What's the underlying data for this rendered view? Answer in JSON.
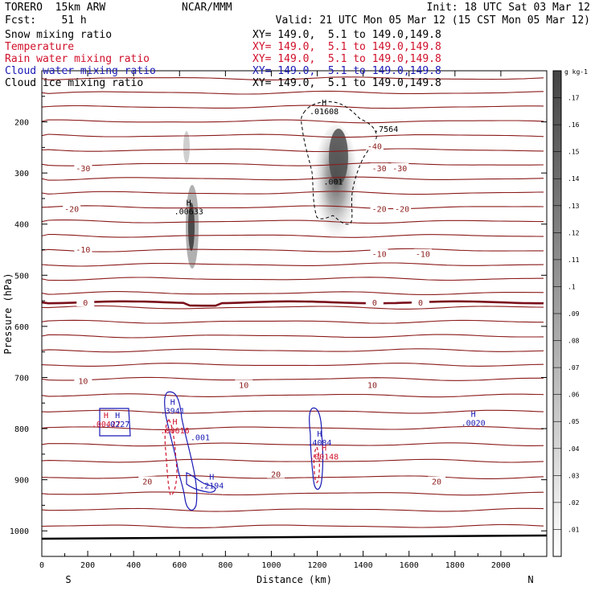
{
  "header": {
    "model": "TORERO  15km ARW",
    "center": "NCAR/MMM",
    "init": "Init: 18 UTC Sat 03 Mar 12",
    "fcst": "Fcst:    51 h",
    "valid": "Valid: 21 UTC Mon 05 Mar 12 (15 CST Mon 05 Mar 12)"
  },
  "legend": [
    {
      "name": "Snow mixing ratio",
      "color": "#000000",
      "xy": "XY= 149.0,  5.1 to 149.0,149.8"
    },
    {
      "name": "Temperature",
      "color": "#d0102a",
      "xy": "XY= 149.0,  5.1 to 149.0,149.8"
    },
    {
      "name": "Rain water mixing ratio",
      "color": "#d0102a",
      "xy": "XY= 149.0,  5.1 to 149.0,149.8"
    },
    {
      "name": "Cloud water mixing ratio",
      "color": "#1a1ab4",
      "xy": "XY= 149.0,  5.1 to 149.0,149.8"
    },
    {
      "name": "Cloud ice mixing ratio",
      "color": "#000000",
      "xy": "XY= 149.0,  5.1 to 149.0,149.8"
    }
  ],
  "chart_data": {
    "type": "heatmap",
    "xlabel": "Distance (km)",
    "ylabel": "Pressure (hPa)",
    "xlim": [
      0,
      2200
    ],
    "ylim": [
      1050,
      100
    ],
    "x_ticks": [
      0,
      200,
      400,
      600,
      800,
      1000,
      1200,
      1400,
      1600,
      1800,
      2000
    ],
    "y_ticks": [
      200,
      300,
      400,
      500,
      600,
      700,
      800,
      900,
      1000
    ],
    "end_labels": {
      "left": "S",
      "right": "N"
    },
    "colorbar": {
      "unit": "g kg-1",
      "ticks": [
        ".01",
        ".02",
        ".03",
        ".04",
        ".05",
        ".06",
        ".07",
        ".08",
        ".09",
        ".1",
        ".11",
        ".12",
        ".13",
        ".14",
        ".15",
        ".16",
        ".17"
      ],
      "max": 0.18
    },
    "temperature_labels": [
      {
        "x": 180,
        "p": 290,
        "t": "-30"
      },
      {
        "x": 1470,
        "p": 290,
        "t": "-30"
      },
      {
        "x": 1560,
        "p": 290,
        "t": "-30"
      },
      {
        "x": 1450,
        "p": 247,
        "t": "-40"
      },
      {
        "x": 130,
        "p": 370,
        "t": "-20"
      },
      {
        "x": 1470,
        "p": 370,
        "t": "-20"
      },
      {
        "x": 1570,
        "p": 370,
        "t": "-20"
      },
      {
        "x": 180,
        "p": 449,
        "t": "-10"
      },
      {
        "x": 1470,
        "p": 458,
        "t": "-10"
      },
      {
        "x": 1660,
        "p": 458,
        "t": "-10"
      },
      {
        "x": 190,
        "p": 553,
        "t": "0"
      },
      {
        "x": 1450,
        "p": 553,
        "t": "0"
      },
      {
        "x": 1650,
        "p": 553,
        "t": "0"
      },
      {
        "x": 180,
        "p": 706,
        "t": "10"
      },
      {
        "x": 880,
        "p": 714,
        "t": "10"
      },
      {
        "x": 1440,
        "p": 714,
        "t": "10"
      },
      {
        "x": 460,
        "p": 903,
        "t": "20"
      },
      {
        "x": 1020,
        "p": 889,
        "t": "20"
      },
      {
        "x": 1720,
        "p": 903,
        "t": "20"
      }
    ],
    "maxima_labels": [
      {
        "x": 1230,
        "p": 180,
        "h": "H",
        "v": ".01608",
        "series": "snow"
      },
      {
        "x": 640,
        "p": 376,
        "h": "H",
        "v": ".00633",
        "series": "snow"
      },
      {
        "x": 1270,
        "p": 318,
        "h": "",
        "v": ".001",
        "series": "ice"
      },
      {
        "x": 1500,
        "p": 215,
        "h": "",
        "v": ".7564",
        "series": "ice"
      },
      {
        "x": 280,
        "p": 792,
        "h": "H",
        "v": ".00427",
        "series": "rain"
      },
      {
        "x": 330,
        "p": 792,
        "h": "H",
        "v": ".0227",
        "series": "cloudwater"
      },
      {
        "x": 570,
        "p": 766,
        "h": "H",
        "v": ".3941",
        "series": "cloudwater"
      },
      {
        "x": 580,
        "p": 805,
        "h": "H",
        "v": ".00616",
        "series": "rain"
      },
      {
        "x": 690,
        "p": 818,
        "h": "",
        "v": ".001",
        "series": "cloudwater"
      },
      {
        "x": 1210,
        "p": 828,
        "h": "H",
        "v": ".4084",
        "series": "cloudwater"
      },
      {
        "x": 1230,
        "p": 856,
        "h": "H",
        "v": ".00148",
        "series": "rain"
      },
      {
        "x": 740,
        "p": 912,
        "h": "H",
        "v": ".2194",
        "series": "cloudwater"
      },
      {
        "x": 1880,
        "p": 790,
        "h": "H",
        "v": ".0020",
        "series": "cloudwater"
      }
    ]
  }
}
